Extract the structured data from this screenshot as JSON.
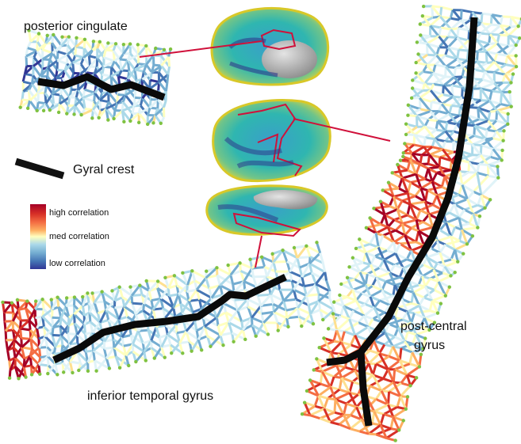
{
  "labels": {
    "posterior_cingulate": "posterior cingulate",
    "inferior_temporal": "inferior temporal gyrus",
    "post_central": [
      "post-central",
      "gyrus"
    ]
  },
  "legend": {
    "crest": "Gyral crest",
    "high": "high correlation",
    "med": "med correlation",
    "low": "low correlation"
  }
}
